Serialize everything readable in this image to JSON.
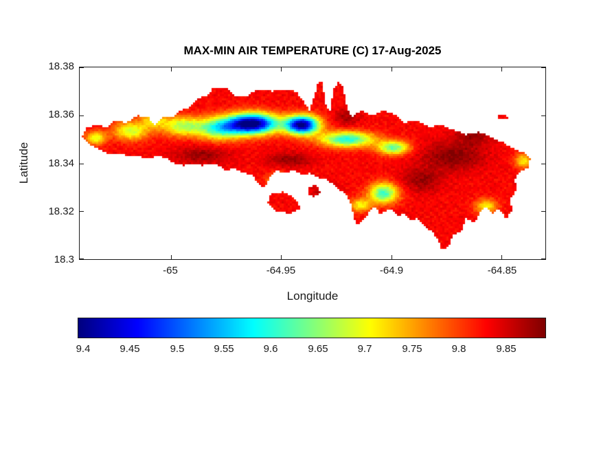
{
  "figure": {
    "background": "#ffffff",
    "axes_color": "#1a1a1a",
    "title_color": "#000000"
  },
  "chart_data": {
    "type": "heatmap",
    "title": "MAX-MIN AIR TEMPERATURE (C) 17-Aug-2025",
    "xlabel": "Longitude",
    "ylabel": "Latitude",
    "units": "C",
    "date": "17-Aug-2025",
    "xlim": [
      -65.0413,
      -64.8301
    ],
    "ylim": [
      18.3,
      18.38
    ],
    "xticks": [
      -65,
      -64.95,
      -64.9,
      -64.85
    ],
    "xtick_labels": [
      "-65",
      "-64.95",
      "-64.9",
      "-64.85"
    ],
    "yticks": [
      18.38,
      18.36,
      18.34,
      18.32,
      18.3
    ],
    "ytick_labels": [
      "18.38",
      "18.36",
      "18.34",
      "18.32",
      "18.3"
    ],
    "grid": false,
    "colorbar": {
      "orientation": "horizontal",
      "colormap": "jet",
      "range": [
        9.395,
        9.892
      ],
      "ticks": [
        9.4,
        9.45,
        9.5,
        9.55,
        9.6,
        9.65,
        9.7,
        9.75,
        9.8,
        9.85
      ],
      "tick_labels": [
        "9.4",
        "9.45",
        "9.5",
        "9.55",
        "9.6",
        "9.65",
        "9.7",
        "9.75",
        "9.8",
        "9.85"
      ]
    },
    "field": {
      "base_value": 9.83,
      "clamp": [
        9.395,
        9.892
      ],
      "blobs": [
        {
          "lon": -64.963,
          "lat": 18.3565,
          "sx": 0.011,
          "sy": 0.0042,
          "dv": -0.46
        },
        {
          "lon": -64.9405,
          "lat": 18.356,
          "sx": 0.0075,
          "sy": 0.0038,
          "dv": -0.44
        },
        {
          "lon": -64.978,
          "lat": 18.3545,
          "sx": 0.01,
          "sy": 0.0045,
          "dv": -0.22
        },
        {
          "lon": -64.995,
          "lat": 18.3555,
          "sx": 0.009,
          "sy": 0.004,
          "dv": -0.16
        },
        {
          "lon": -65.018,
          "lat": 18.3535,
          "sx": 0.008,
          "sy": 0.0038,
          "dv": -0.15
        },
        {
          "lon": -65.034,
          "lat": 18.3505,
          "sx": 0.0045,
          "sy": 0.0028,
          "dv": -0.14
        },
        {
          "lon": -64.92,
          "lat": 18.35,
          "sx": 0.012,
          "sy": 0.0032,
          "dv": -0.24
        },
        {
          "lon": -64.899,
          "lat": 18.3465,
          "sx": 0.007,
          "sy": 0.0028,
          "dv": -0.2
        },
        {
          "lon": -64.9035,
          "lat": 18.3275,
          "sx": 0.0065,
          "sy": 0.0042,
          "dv": -0.22
        },
        {
          "lon": -64.914,
          "lat": 18.3225,
          "sx": 0.005,
          "sy": 0.0028,
          "dv": -0.12
        },
        {
          "lon": -64.951,
          "lat": 18.333,
          "sx": 0.005,
          "sy": 0.003,
          "dv": -0.1
        },
        {
          "lon": -65.008,
          "lat": 18.358,
          "sx": 0.006,
          "sy": 0.003,
          "dv": -0.1
        },
        {
          "lon": -64.857,
          "lat": 18.322,
          "sx": 0.005,
          "sy": 0.0032,
          "dv": -0.12
        },
        {
          "lon": -64.84,
          "lat": 18.341,
          "sx": 0.004,
          "sy": 0.003,
          "dv": -0.12
        },
        {
          "lon": -64.872,
          "lat": 18.343,
          "sx": 0.014,
          "sy": 0.006,
          "dv": 0.06
        },
        {
          "lon": -64.886,
          "lat": 18.333,
          "sx": 0.009,
          "sy": 0.005,
          "dv": 0.05
        },
        {
          "lon": -64.863,
          "lat": 18.352,
          "sx": 0.008,
          "sy": 0.004,
          "dv": 0.05
        },
        {
          "lon": -64.986,
          "lat": 18.3435,
          "sx": 0.012,
          "sy": 0.0035,
          "dv": 0.05
        },
        {
          "lon": -64.946,
          "lat": 18.3415,
          "sx": 0.01,
          "sy": 0.003,
          "dv": 0.05
        },
        {
          "lon": -64.92,
          "lat": 18.359,
          "sx": 0.006,
          "sy": 0.0035,
          "dv": 0.04
        },
        {
          "lon": -64.898,
          "lat": 18.313,
          "sx": 0.008,
          "sy": 0.004,
          "dv": 0.05
        },
        {
          "lon": -64.93,
          "lat": 18.3285,
          "sx": 0.006,
          "sy": 0.0035,
          "dv": 0.04
        }
      ]
    },
    "region": {
      "name": "island",
      "island_outline": [
        [
          -65.04,
          18.351
        ],
        [
          -65.038,
          18.355
        ],
        [
          -65.033,
          18.356
        ],
        [
          -65.029,
          18.355
        ],
        [
          -65.026,
          18.358
        ],
        [
          -65.02,
          18.357
        ],
        [
          -65.015,
          18.36
        ],
        [
          -65.01,
          18.359
        ],
        [
          -65.007,
          18.356
        ],
        [
          -65.004,
          18.359
        ],
        [
          -64.999,
          18.359
        ],
        [
          -64.996,
          18.362
        ],
        [
          -64.992,
          18.363
        ],
        [
          -64.988,
          18.367
        ],
        [
          -64.984,
          18.368
        ],
        [
          -64.981,
          18.371
        ],
        [
          -64.974,
          18.371
        ],
        [
          -64.971,
          18.368
        ],
        [
          -64.965,
          18.368
        ],
        [
          -64.961,
          18.371
        ],
        [
          -64.954,
          18.37
        ],
        [
          -64.95,
          18.371
        ],
        [
          -64.943,
          18.37
        ],
        [
          -64.94,
          18.366
        ],
        [
          -64.937,
          18.362
        ],
        [
          -64.935,
          18.368
        ],
        [
          -64.933,
          18.374
        ],
        [
          -64.931,
          18.374
        ],
        [
          -64.93,
          18.365
        ],
        [
          -64.928,
          18.361
        ],
        [
          -64.926,
          18.371
        ],
        [
          -64.924,
          18.374
        ],
        [
          -64.922,
          18.372
        ],
        [
          -64.92,
          18.363
        ],
        [
          -64.918,
          18.359
        ],
        [
          -64.914,
          18.362
        ],
        [
          -64.909,
          18.36
        ],
        [
          -64.903,
          18.362
        ],
        [
          -64.898,
          18.36
        ],
        [
          -64.894,
          18.357
        ],
        [
          -64.888,
          18.358
        ],
        [
          -64.883,
          18.355
        ],
        [
          -64.877,
          18.356
        ],
        [
          -64.872,
          18.354
        ],
        [
          -64.866,
          18.352
        ],
        [
          -64.86,
          18.353
        ],
        [
          -64.855,
          18.351
        ],
        [
          -64.85,
          18.349
        ],
        [
          -64.844,
          18.346
        ],
        [
          -64.839,
          18.344
        ],
        [
          -64.837,
          18.342
        ],
        [
          -64.838,
          18.338
        ],
        [
          -64.842,
          18.336
        ],
        [
          -64.844,
          18.333
        ],
        [
          -64.843,
          18.329
        ],
        [
          -64.846,
          18.325
        ],
        [
          -64.845,
          18.32
        ],
        [
          -64.848,
          18.317
        ],
        [
          -64.851,
          18.321
        ],
        [
          -64.854,
          18.319
        ],
        [
          -64.857,
          18.322
        ],
        [
          -64.86,
          18.319
        ],
        [
          -64.862,
          18.315
        ],
        [
          -64.866,
          18.317
        ],
        [
          -64.868,
          18.312
        ],
        [
          -64.872,
          18.31
        ],
        [
          -64.874,
          18.305
        ],
        [
          -64.877,
          18.304
        ],
        [
          -64.879,
          18.308
        ],
        [
          -64.881,
          18.311
        ],
        [
          -64.885,
          18.314
        ],
        [
          -64.888,
          18.317
        ],
        [
          -64.891,
          18.316
        ],
        [
          -64.894,
          18.319
        ],
        [
          -64.897,
          18.318
        ],
        [
          -64.9,
          18.321
        ],
        [
          -64.905,
          18.319
        ],
        [
          -64.908,
          18.322
        ],
        [
          -64.912,
          18.317
        ],
        [
          -64.915,
          18.314
        ],
        [
          -64.917,
          18.317
        ],
        [
          -64.918,
          18.322
        ],
        [
          -64.92,
          18.326
        ],
        [
          -64.922,
          18.328
        ],
        [
          -64.926,
          18.331
        ],
        [
          -64.929,
          18.333
        ],
        [
          -64.933,
          18.334
        ],
        [
          -64.937,
          18.336
        ],
        [
          -64.94,
          18.335
        ],
        [
          -64.944,
          18.337
        ],
        [
          -64.948,
          18.336
        ],
        [
          -64.952,
          18.337
        ],
        [
          -64.955,
          18.334
        ],
        [
          -64.957,
          18.33
        ],
        [
          -64.96,
          18.331
        ],
        [
          -64.963,
          18.335
        ],
        [
          -64.967,
          18.336
        ],
        [
          -64.971,
          18.338
        ],
        [
          -64.975,
          18.337
        ],
        [
          -64.978,
          18.339
        ],
        [
          -64.982,
          18.34
        ],
        [
          -64.986,
          18.339
        ],
        [
          -64.99,
          18.34
        ],
        [
          -64.994,
          18.339
        ],
        [
          -64.998,
          18.34
        ],
        [
          -65.002,
          18.342
        ],
        [
          -65.006,
          18.343
        ],
        [
          -65.01,
          18.342
        ],
        [
          -65.015,
          18.343
        ],
        [
          -65.019,
          18.343
        ],
        [
          -65.024,
          18.344
        ],
        [
          -65.029,
          18.344
        ],
        [
          -65.033,
          18.346
        ],
        [
          -65.037,
          18.348
        ]
      ],
      "islets": [
        [
          [
            -64.955,
            18.327
          ],
          [
            -64.949,
            18.328
          ],
          [
            -64.943,
            18.325
          ],
          [
            -64.941,
            18.321
          ],
          [
            -64.946,
            18.319
          ],
          [
            -64.952,
            18.32
          ],
          [
            -64.956,
            18.3235
          ]
        ],
        [
          [
            -64.938,
            18.33
          ],
          [
            -64.934,
            18.331
          ],
          [
            -64.932,
            18.328
          ],
          [
            -64.935,
            18.326
          ],
          [
            -64.938,
            18.3275
          ]
        ],
        [
          [
            -64.852,
            18.36
          ],
          [
            -64.848,
            18.3605
          ],
          [
            -64.847,
            18.3585
          ],
          [
            -64.851,
            18.358
          ]
        ]
      ]
    }
  }
}
